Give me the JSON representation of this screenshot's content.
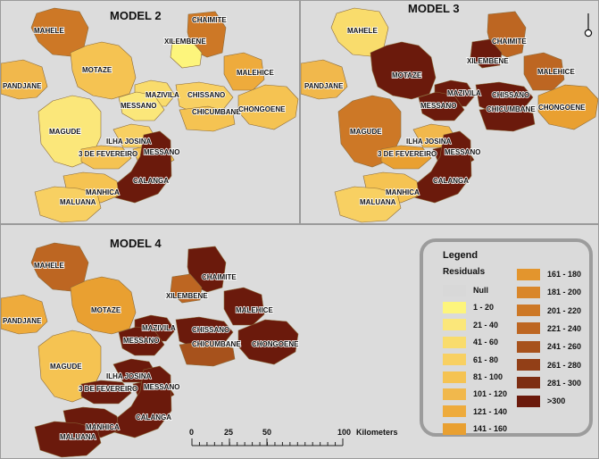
{
  "models": [
    {
      "title": "MODEL 2",
      "districts": [
        {
          "name": "MAHELE",
          "residual_class": "201 - 220"
        },
        {
          "name": "CHAIMITE",
          "residual_class": "201 - 220"
        },
        {
          "name": "XILEMBENE",
          "residual_class": "1 - 20"
        },
        {
          "name": "PANDJANE",
          "residual_class": "101 - 120"
        },
        {
          "name": "MOTAZE",
          "residual_class": "81 - 100"
        },
        {
          "name": "MALEHICE",
          "residual_class": "121 - 140"
        },
        {
          "name": "MAZIVILA",
          "residual_class": "41 - 60"
        },
        {
          "name": "CHISSANO",
          "residual_class": "61 - 80"
        },
        {
          "name": "MESSANO",
          "residual_class": "21 - 40"
        },
        {
          "name": "CHICUMBANE",
          "residual_class": "81 - 100"
        },
        {
          "name": "CHONGOENE",
          "residual_class": "81 - 100"
        },
        {
          "name": "MAGUDE",
          "residual_class": "21 - 40"
        },
        {
          "name": "ILHA JOSINA",
          "residual_class": "61 - 80"
        },
        {
          "name": "3 DE FEVEREIRO",
          "residual_class": "81 - 100"
        },
        {
          "name": "MESSANO",
          "residual_class": "81 - 100"
        },
        {
          "name": "CALANGA",
          "residual_class": ">300"
        },
        {
          "name": "MANHICA",
          "residual_class": "81 - 100"
        },
        {
          "name": "MALUANA",
          "residual_class": "61 - 80"
        }
      ]
    },
    {
      "title": "MODEL 3",
      "districts": [
        {
          "name": "MAHELE",
          "residual_class": "41 - 60"
        },
        {
          "name": "CHAIMITE",
          "residual_class": "221 - 240"
        },
        {
          "name": "XILEMBENE",
          "residual_class": ">300"
        },
        {
          "name": "PANDJANE",
          "residual_class": "101 - 120"
        },
        {
          "name": "MOTAZE",
          "residual_class": ">300"
        },
        {
          "name": "MALEHICE",
          "residual_class": "221 - 240"
        },
        {
          "name": "MAZIVILA",
          "residual_class": ">300"
        },
        {
          "name": "CHISSANO",
          "residual_class": ">300"
        },
        {
          "name": "MESSANO",
          "residual_class": ">300"
        },
        {
          "name": "CHICUMBANE",
          "residual_class": ">300"
        },
        {
          "name": "CHONGOENE",
          "residual_class": "141 - 160"
        },
        {
          "name": "MAGUDE",
          "residual_class": "201 - 220"
        },
        {
          "name": "ILHA JOSINA",
          "residual_class": "101 - 120"
        },
        {
          "name": "3 DE FEVEREIRO",
          "residual_class": "141 - 160"
        },
        {
          "name": "MESSANO",
          "residual_class": ">300"
        },
        {
          "name": "CALANGA",
          "residual_class": ">300"
        },
        {
          "name": "MANHICA",
          "residual_class": "81 - 100"
        },
        {
          "name": "MALUANA",
          "residual_class": "61 - 80"
        }
      ]
    },
    {
      "title": "MODEL 4",
      "districts": [
        {
          "name": "MAHELE",
          "residual_class": "221 - 240"
        },
        {
          "name": "CHAIMITE",
          "residual_class": ">300"
        },
        {
          "name": "XILEMBENE",
          "residual_class": "221 - 240"
        },
        {
          "name": "PANDJANE",
          "residual_class": "121 - 140"
        },
        {
          "name": "MOTAZE",
          "residual_class": "141 - 160"
        },
        {
          "name": "MALEHICE",
          "residual_class": ">300"
        },
        {
          "name": "MAZIVILA",
          "residual_class": ">300"
        },
        {
          "name": "CHISSANO",
          "residual_class": ">300"
        },
        {
          "name": "MESSANO",
          "residual_class": ">300"
        },
        {
          "name": "CHICUMBANE",
          "residual_class": "241 - 260"
        },
        {
          "name": "CHONGOENE",
          "residual_class": ">300"
        },
        {
          "name": "MAGUDE",
          "residual_class": "81 - 100"
        },
        {
          "name": "ILHA JOSINA",
          "residual_class": ">300"
        },
        {
          "name": "3 DE FEVEREIRO",
          "residual_class": ">300"
        },
        {
          "name": "MESSANO",
          "residual_class": ">300"
        },
        {
          "name": "CALANGA",
          "residual_class": ">300"
        },
        {
          "name": "MANHICA",
          "residual_class": ">300"
        },
        {
          "name": "MALUANA",
          "residual_class": ">300"
        }
      ]
    }
  ],
  "legend": {
    "title": "Legend",
    "subtitle": "Residuals",
    "classes": [
      {
        "label": "Null",
        "color": "#d8d8d8"
      },
      {
        "label": "1 - 20",
        "color": "#fdf57c"
      },
      {
        "label": "21 - 40",
        "color": "#fbe77a"
      },
      {
        "label": "41 - 60",
        "color": "#f9dc6c"
      },
      {
        "label": "61 - 80",
        "color": "#f8d062"
      },
      {
        "label": "81 - 100",
        "color": "#f5c352"
      },
      {
        "label": "101 - 120",
        "color": "#f1b84c"
      },
      {
        "label": "121 - 140",
        "color": "#eeab3c"
      },
      {
        "label": "141 - 160",
        "color": "#e9a031"
      },
      {
        "label": "161 - 180",
        "color": "#e3952d"
      },
      {
        "label": "181 - 200",
        "color": "#d9862a"
      },
      {
        "label": "201 - 220",
        "color": "#cd7826"
      },
      {
        "label": "221 - 240",
        "color": "#bd6622"
      },
      {
        "label": "241 - 260",
        "color": "#a7521c"
      },
      {
        "label": "261 - 280",
        "color": "#923f17"
      },
      {
        "label": "281 - 300",
        "color": "#7d2d12"
      },
      {
        "label": ">300",
        "color": "#6b1a0c"
      }
    ]
  },
  "scale": {
    "ticks": [
      "0",
      "25",
      "50",
      "100"
    ],
    "unit": "Kilometers"
  }
}
